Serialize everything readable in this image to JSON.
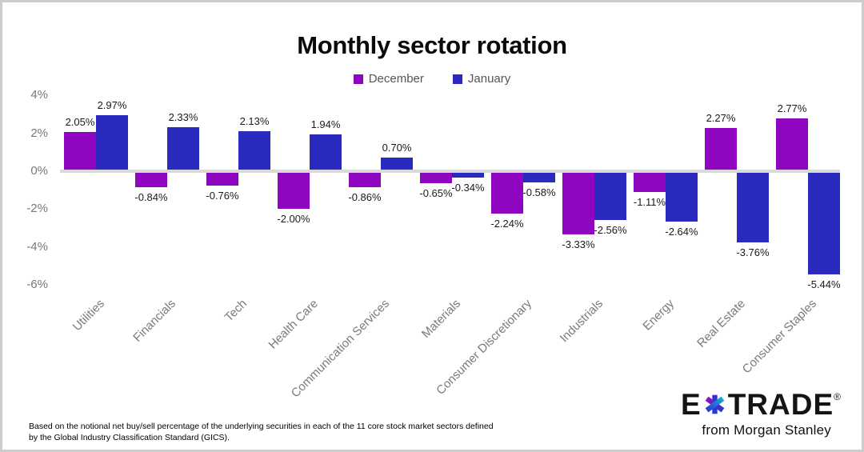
{
  "title": "Monthly sector rotation",
  "legend": [
    {
      "label": "December",
      "color": "#8f06c0"
    },
    {
      "label": "January",
      "color": "#2a2abf"
    }
  ],
  "chart_data": {
    "type": "bar",
    "title": "Monthly sector rotation",
    "categories": [
      "Utilities",
      "Financials",
      "Tech",
      "Health Care",
      "Communication Services",
      "Materials",
      "Consumer Discretionary",
      "Industrials",
      "Energy",
      "Real Estate",
      "Consumer Staples"
    ],
    "series": [
      {
        "name": "December",
        "color": "#8f06c0",
        "values": [
          2.05,
          -0.84,
          -0.76,
          -2.0,
          -0.86,
          -0.65,
          -2.24,
          -3.33,
          -1.11,
          2.27,
          2.77
        ]
      },
      {
        "name": "January",
        "color": "#2a2abf",
        "values": [
          2.97,
          2.33,
          2.13,
          1.94,
          0.7,
          -0.34,
          -0.58,
          -2.56,
          -2.64,
          -3.76,
          -5.44
        ]
      }
    ],
    "yticks": [
      4,
      2,
      0,
      -2,
      -4,
      -6
    ],
    "ylim": [
      -6.5,
      4.5
    ],
    "xlabel": "",
    "ylabel": "",
    "grid": false,
    "legend_position": "top-center",
    "baseline_color": "#d9d9d9"
  },
  "footnote": "Based on the notional net buy/sell percentage of the underlying securities in each of the 11 core stock market sectors defined by the Global Industry Classification Standard (GICS).",
  "logo": {
    "brand_e": "E",
    "brand_trade": "TRADE",
    "registered": "®",
    "tagline": "from Morgan Stanley",
    "star_colors": {
      "purple": "#8f10cc",
      "blue": "#2e35d1",
      "teal": "#16aec8"
    }
  }
}
